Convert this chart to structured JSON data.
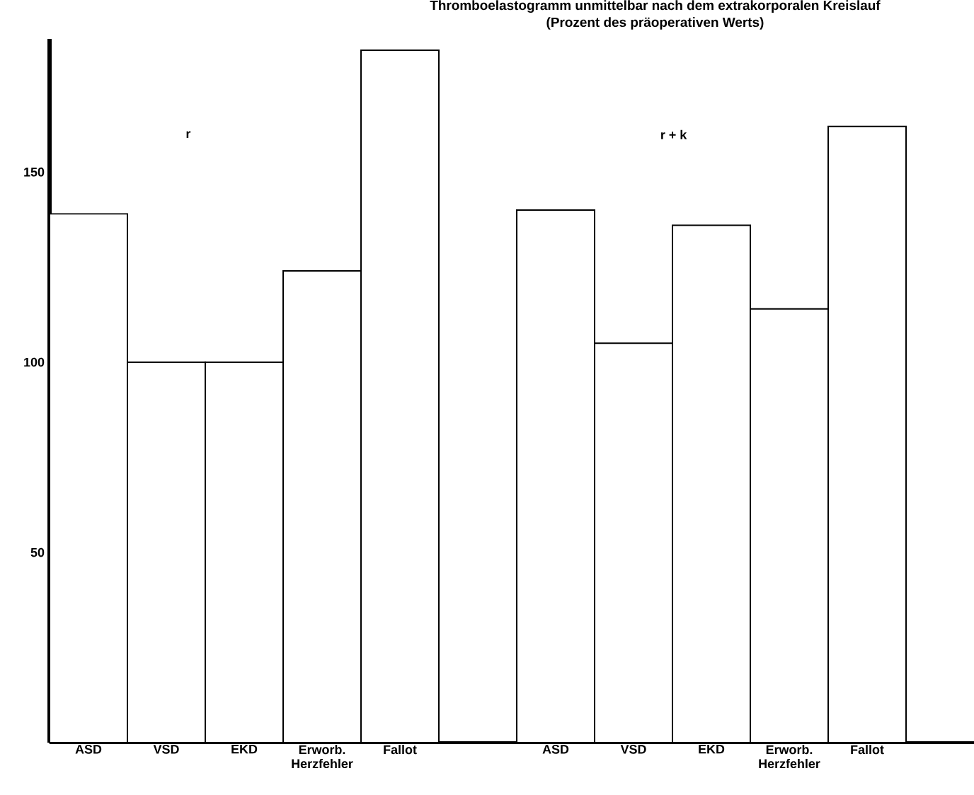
{
  "chart_data": {
    "type": "bar",
    "title": "Thromboelastogramm unmittelbar nach dem extrakorporalen Kreislauf",
    "subtitle": "(Prozent des präoperativen Werts)",
    "categories": [
      "ASD",
      "VSD",
      "EKD",
      "Erworb. Herzfehler",
      "Fallot",
      null,
      "ASD",
      "VSD",
      "EKD",
      "Erworb. Herzfehler",
      "Fallot"
    ],
    "values": [
      139,
      100,
      100,
      124,
      182,
      null,
      140,
      105,
      136,
      114,
      162
    ],
    "color": "#ffffff",
    "ylim": [
      0,
      185
    ],
    "yticks": [
      50,
      100,
      150
    ],
    "annotations": [
      "r",
      "r + k"
    ]
  }
}
